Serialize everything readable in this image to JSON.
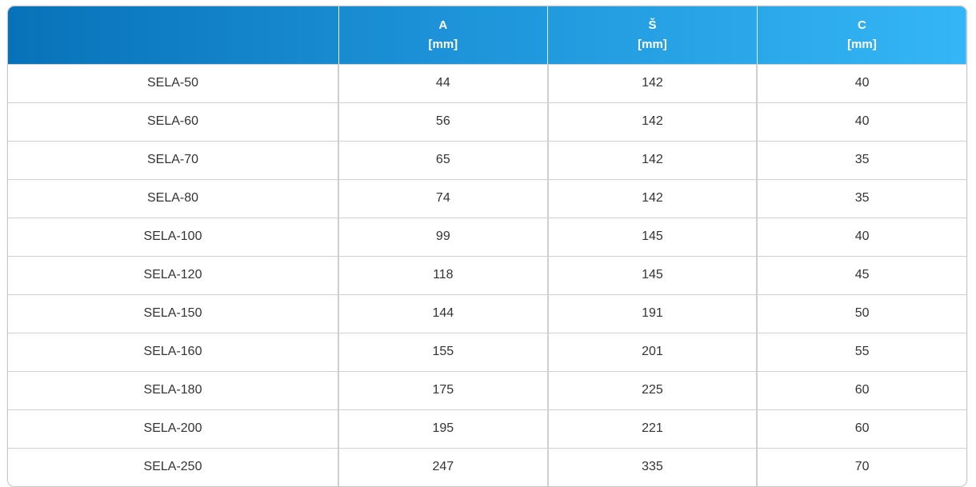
{
  "table": {
    "columns": [
      {
        "name": "A",
        "unit": "[mm]"
      },
      {
        "name": "Š",
        "unit": "[mm]"
      },
      {
        "name": "C",
        "unit": "[mm]"
      }
    ],
    "rows": [
      [
        "SELA-50",
        44,
        142,
        40
      ],
      [
        "SELA-60",
        56,
        142,
        40
      ],
      [
        "SELA-70",
        65,
        142,
        35
      ],
      [
        "SELA-80",
        74,
        142,
        35
      ],
      [
        "SELA-100",
        99,
        145,
        40
      ],
      [
        "SELA-120",
        118,
        145,
        45
      ],
      [
        "SELA-150",
        144,
        191,
        50
      ],
      [
        "SELA-160",
        155,
        201,
        55
      ],
      [
        "SELA-180",
        175,
        225,
        60
      ],
      [
        "SELA-200",
        195,
        221,
        60
      ],
      [
        "SELA-250",
        247,
        335,
        70
      ]
    ]
  }
}
